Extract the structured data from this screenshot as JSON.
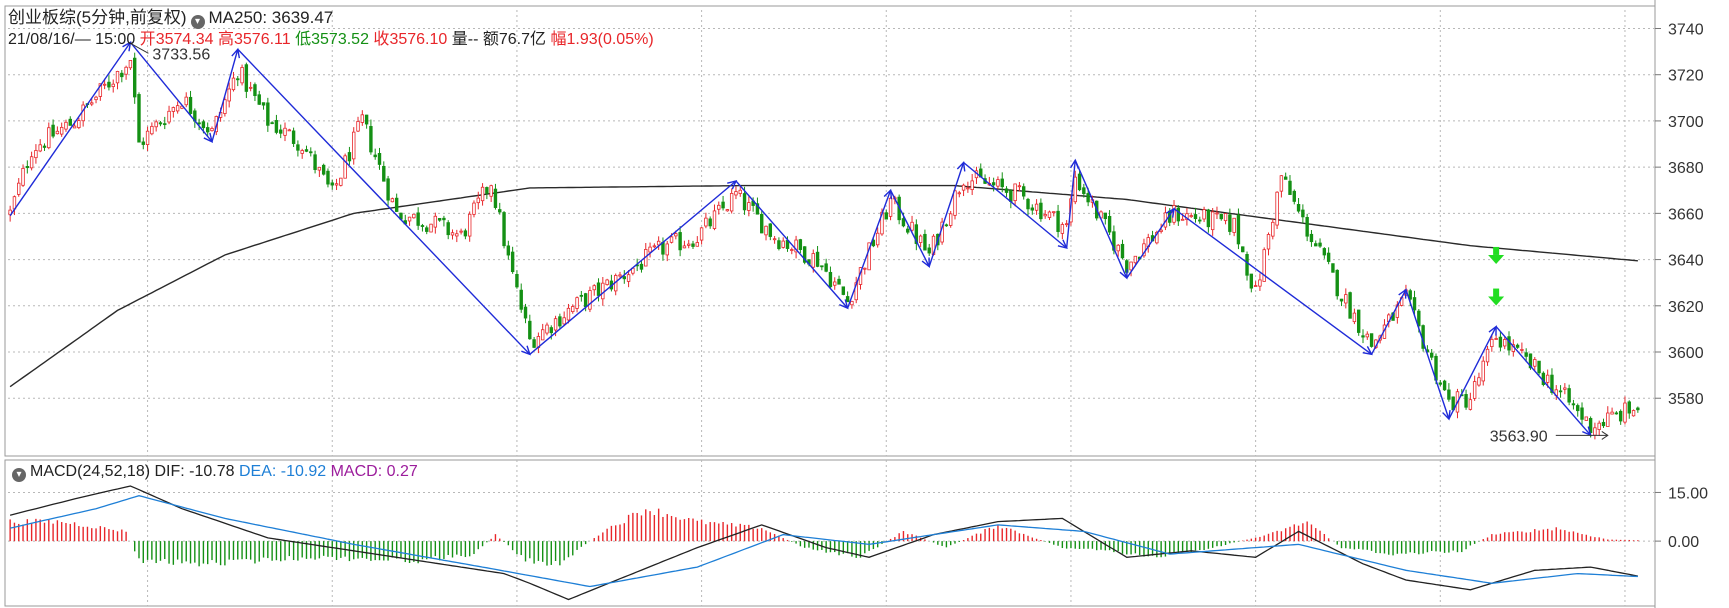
{
  "header": {
    "title": "创业板综(5分钟,前复权)",
    "ma_label": "MA250: 3639.47",
    "date_time": "21/08/16/— 15:00",
    "open_label": "开",
    "open_value": "3574.34",
    "high_label": "高",
    "high_value": "3576.11",
    "low_label": "低",
    "low_value": "3573.52",
    "close_label": "收",
    "close_value": "3576.10",
    "volume_label": "量--",
    "amount_label": "额76.7亿",
    "amp_label": "幅",
    "amp_value": "1.93(0.05%)"
  },
  "macd_header": {
    "title": "MACD(24,52,18)",
    "dif": "DIF: -10.78",
    "dea": "DEA: -10.92",
    "macd": "MACD: 0.27"
  },
  "colors": {
    "up": "#e8262a",
    "down": "#149014",
    "zigzag": "#1f2bd8",
    "ma": "#2a2a2a",
    "dea": "#1e7fd6",
    "macd_label": "#9c1d9c",
    "arrow": "#22dd22",
    "grid": "#b8b8b8"
  },
  "chart_data": [
    {
      "type": "candlestick",
      "ylim": [
        3555,
        3748
      ],
      "yticks": [
        3740,
        3720,
        3700,
        3680,
        3660,
        3640,
        3620,
        3600,
        3580
      ],
      "n_bars": 380,
      "annotations": [
        {
          "text": "3733.56",
          "bar": 28,
          "value": 3733.56,
          "kind": "high"
        },
        {
          "text": "3563.90",
          "bar": 372,
          "value": 3563.9,
          "kind": "low"
        }
      ],
      "zigzag": [
        {
          "bar": 0,
          "value": 3659
        },
        {
          "bar": 28,
          "value": 3734
        },
        {
          "bar": 47,
          "value": 3691
        },
        {
          "bar": 53,
          "value": 3731
        },
        {
          "bar": 121,
          "value": 3599
        },
        {
          "bar": 169,
          "value": 3674
        },
        {
          "bar": 195,
          "value": 3619
        },
        {
          "bar": 205,
          "value": 3670
        },
        {
          "bar": 214,
          "value": 3637
        },
        {
          "bar": 222,
          "value": 3682
        },
        {
          "bar": 246,
          "value": 3645
        },
        {
          "bar": 248,
          "value": 3683
        },
        {
          "bar": 260,
          "value": 3632
        },
        {
          "bar": 271,
          "value": 3662
        },
        {
          "bar": 317,
          "value": 3599
        },
        {
          "bar": 325,
          "value": 3627
        },
        {
          "bar": 335,
          "value": 3571
        },
        {
          "bar": 346,
          "value": 3611
        },
        {
          "bar": 368,
          "value": 3564
        }
      ],
      "price_path": [
        {
          "bar": 0,
          "value": 3660
        },
        {
          "bar": 5,
          "value": 3688
        },
        {
          "bar": 15,
          "value": 3700
        },
        {
          "bar": 28,
          "value": 3727
        },
        {
          "bar": 30,
          "value": 3690
        },
        {
          "bar": 40,
          "value": 3710
        },
        {
          "bar": 47,
          "value": 3695
        },
        {
          "bar": 53,
          "value": 3722
        },
        {
          "bar": 60,
          "value": 3700
        },
        {
          "bar": 68,
          "value": 3690
        },
        {
          "bar": 75,
          "value": 3668
        },
        {
          "bar": 82,
          "value": 3700
        },
        {
          "bar": 90,
          "value": 3660
        },
        {
          "bar": 98,
          "value": 3656
        },
        {
          "bar": 105,
          "value": 3650
        },
        {
          "bar": 112,
          "value": 3674
        },
        {
          "bar": 116,
          "value": 3640
        },
        {
          "bar": 121,
          "value": 3605
        },
        {
          "bar": 130,
          "value": 3618
        },
        {
          "bar": 140,
          "value": 3630
        },
        {
          "bar": 152,
          "value": 3645
        },
        {
          "bar": 160,
          "value": 3650
        },
        {
          "bar": 169,
          "value": 3668
        },
        {
          "bar": 178,
          "value": 3650
        },
        {
          "bar": 188,
          "value": 3640
        },
        {
          "bar": 195,
          "value": 3622
        },
        {
          "bar": 205,
          "value": 3665
        },
        {
          "bar": 214,
          "value": 3642
        },
        {
          "bar": 222,
          "value": 3676
        },
        {
          "bar": 235,
          "value": 3668
        },
        {
          "bar": 246,
          "value": 3654
        },
        {
          "bar": 248,
          "value": 3676
        },
        {
          "bar": 260,
          "value": 3638
        },
        {
          "bar": 271,
          "value": 3660
        },
        {
          "bar": 285,
          "value": 3655
        },
        {
          "bar": 290,
          "value": 3625
        },
        {
          "bar": 296,
          "value": 3676
        },
        {
          "bar": 300,
          "value": 3660
        },
        {
          "bar": 310,
          "value": 3625
        },
        {
          "bar": 317,
          "value": 3603
        },
        {
          "bar": 325,
          "value": 3623
        },
        {
          "bar": 335,
          "value": 3578
        },
        {
          "bar": 340,
          "value": 3580
        },
        {
          "bar": 346,
          "value": 3607
        },
        {
          "bar": 358,
          "value": 3588
        },
        {
          "bar": 368,
          "value": 3568
        },
        {
          "bar": 379,
          "value": 3576
        }
      ],
      "ma250": [
        {
          "bar": 0,
          "value": 3585
        },
        {
          "bar": 25,
          "value": 3618
        },
        {
          "bar": 50,
          "value": 3642
        },
        {
          "bar": 80,
          "value": 3660
        },
        {
          "bar": 121,
          "value": 3671
        },
        {
          "bar": 170,
          "value": 3672
        },
        {
          "bar": 220,
          "value": 3672
        },
        {
          "bar": 260,
          "value": 3666
        },
        {
          "bar": 300,
          "value": 3656
        },
        {
          "bar": 340,
          "value": 3646
        },
        {
          "bar": 379,
          "value": 3639.47
        }
      ],
      "signal_arrows": [
        {
          "bar": 346,
          "value": 3642
        },
        {
          "bar": 346,
          "value": 3624
        }
      ]
    },
    {
      "type": "macd",
      "ylim": [
        -20,
        25
      ],
      "yticks": [
        15.0,
        0.0
      ],
      "dif": [
        {
          "bar": 0,
          "value": 8
        },
        {
          "bar": 15,
          "value": 13
        },
        {
          "bar": 28,
          "value": 17
        },
        {
          "bar": 40,
          "value": 10
        },
        {
          "bar": 60,
          "value": 1
        },
        {
          "bar": 80,
          "value": -3
        },
        {
          "bar": 100,
          "value": -7
        },
        {
          "bar": 115,
          "value": -10
        },
        {
          "bar": 121,
          "value": -13
        },
        {
          "bar": 130,
          "value": -18
        },
        {
          "bar": 145,
          "value": -10
        },
        {
          "bar": 160,
          "value": -2
        },
        {
          "bar": 175,
          "value": 5
        },
        {
          "bar": 190,
          "value": -2
        },
        {
          "bar": 200,
          "value": -5
        },
        {
          "bar": 215,
          "value": 2
        },
        {
          "bar": 230,
          "value": 6
        },
        {
          "bar": 245,
          "value": 7
        },
        {
          "bar": 260,
          "value": -5
        },
        {
          "bar": 275,
          "value": -3
        },
        {
          "bar": 290,
          "value": -5
        },
        {
          "bar": 300,
          "value": 3
        },
        {
          "bar": 315,
          "value": -7
        },
        {
          "bar": 325,
          "value": -12
        },
        {
          "bar": 340,
          "value": -15
        },
        {
          "bar": 355,
          "value": -9
        },
        {
          "bar": 368,
          "value": -8
        },
        {
          "bar": 379,
          "value": -10.78
        }
      ],
      "dea": [
        {
          "bar": 0,
          "value": 4
        },
        {
          "bar": 20,
          "value": 10
        },
        {
          "bar": 30,
          "value": 14
        },
        {
          "bar": 50,
          "value": 7
        },
        {
          "bar": 80,
          "value": -1
        },
        {
          "bar": 110,
          "value": -8
        },
        {
          "bar": 135,
          "value": -14
        },
        {
          "bar": 160,
          "value": -8
        },
        {
          "bar": 180,
          "value": 2
        },
        {
          "bar": 200,
          "value": -1
        },
        {
          "bar": 230,
          "value": 5
        },
        {
          "bar": 250,
          "value": 3
        },
        {
          "bar": 270,
          "value": -4
        },
        {
          "bar": 300,
          "value": -1
        },
        {
          "bar": 325,
          "value": -9
        },
        {
          "bar": 345,
          "value": -13
        },
        {
          "bar": 365,
          "value": -10
        },
        {
          "bar": 379,
          "value": -10.92
        }
      ],
      "hist": [
        {
          "bar": 0,
          "value": 6
        },
        {
          "bar": 12,
          "value": 6
        },
        {
          "bar": 27,
          "value": 3
        },
        {
          "bar": 30,
          "value": -6
        },
        {
          "bar": 45,
          "value": -7
        },
        {
          "bar": 70,
          "value": -5
        },
        {
          "bar": 95,
          "value": -6
        },
        {
          "bar": 108,
          "value": -4
        },
        {
          "bar": 113,
          "value": 2
        },
        {
          "bar": 120,
          "value": -6
        },
        {
          "bar": 128,
          "value": -7
        },
        {
          "bar": 138,
          "value": 3
        },
        {
          "bar": 148,
          "value": 10
        },
        {
          "bar": 160,
          "value": 6
        },
        {
          "bar": 175,
          "value": 4
        },
        {
          "bar": 185,
          "value": -2
        },
        {
          "bar": 198,
          "value": -5
        },
        {
          "bar": 208,
          "value": 3
        },
        {
          "bar": 218,
          "value": -2
        },
        {
          "bar": 230,
          "value": 5
        },
        {
          "bar": 245,
          "value": -2
        },
        {
          "bar": 255,
          "value": -3
        },
        {
          "bar": 265,
          "value": -5
        },
        {
          "bar": 280,
          "value": -2
        },
        {
          "bar": 293,
          "value": 2
        },
        {
          "bar": 302,
          "value": 6
        },
        {
          "bar": 310,
          "value": -2
        },
        {
          "bar": 322,
          "value": -4
        },
        {
          "bar": 338,
          "value": -3
        },
        {
          "bar": 345,
          "value": 2
        },
        {
          "bar": 360,
          "value": 4
        },
        {
          "bar": 372,
          "value": 0.5
        },
        {
          "bar": 379,
          "value": 0.27
        }
      ]
    }
  ]
}
